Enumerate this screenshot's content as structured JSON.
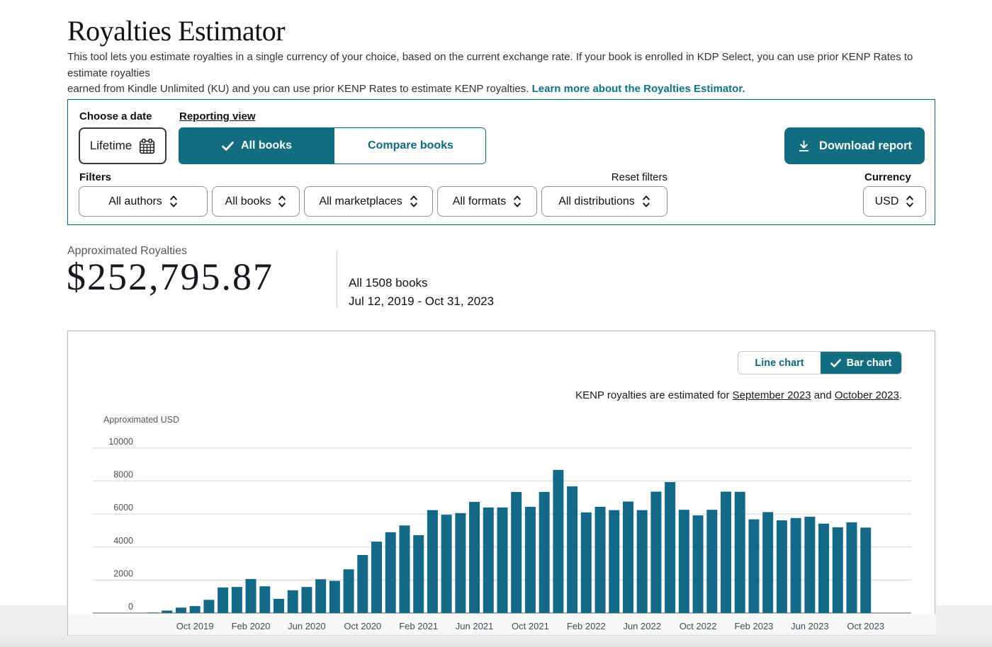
{
  "page": {
    "title": "Royalties Estimator",
    "description_line1": "This tool lets you estimate royalties in a single currency of your choice, based on the current exchange rate. If your book is enrolled in KDP Select, you can use prior KENP Rates to estimate royalties",
    "description_line2": "earned from Kindle Unlimited (KU) and you can use prior KENP Rates to estimate KENP royalties.",
    "learn_more_link": "Learn more about the Royalties Estimator."
  },
  "controls": {
    "choose_date_label": "Choose a date",
    "date_value": "Lifetime",
    "reporting_view_label": "Reporting view",
    "tabs": [
      {
        "label": "All books",
        "selected": true
      },
      {
        "label": "Compare books",
        "selected": false
      }
    ],
    "download_button": "Download report",
    "filters_label": "Filters",
    "reset_filters_label": "Reset filters",
    "filters": [
      {
        "label": "All authors"
      },
      {
        "label": "All books"
      },
      {
        "label": "All marketplaces"
      },
      {
        "label": "All formats"
      },
      {
        "label": "All distributions"
      }
    ],
    "currency_label": "Currency",
    "currency_value": "USD"
  },
  "summary": {
    "label": "Approximated Royalties",
    "amount": "$252,795.87",
    "books": "All 1508 books",
    "date_range": "Jul 12, 2019 - Oct 31, 2023"
  },
  "chart": {
    "toggle": [
      {
        "label": "Line chart",
        "selected": false
      },
      {
        "label": "Bar chart",
        "selected": true
      }
    ],
    "note_prefix": "KENP royalties are estimated for ",
    "note_link1": "September 2023",
    "note_and": " and ",
    "note_link2": "October 2023",
    "note_suffix": "."
  },
  "chart_data": {
    "type": "bar",
    "title": "",
    "xlabel": "",
    "ylabel": "Approximated USD",
    "ylim": [
      0,
      10000
    ],
    "y_ticks": [
      0,
      2000,
      4000,
      6000,
      8000,
      10000
    ],
    "grid": true,
    "legend": "none",
    "bar_color": "#156988",
    "grid_color": "#d2d6d6",
    "axis_color": "#8f9494",
    "tick_text_color": "#4c5257",
    "x": [
      "Jul 2019",
      "Aug 2019",
      "Sep 2019",
      "Oct 2019",
      "Nov 2019",
      "Dec 2019",
      "Jan 2020",
      "Feb 2020",
      "Mar 2020",
      "Apr 2020",
      "May 2020",
      "Jun 2020",
      "Jul 2020",
      "Aug 2020",
      "Sep 2020",
      "Oct 2020",
      "Nov 2020",
      "Dec 2020",
      "Jan 2021",
      "Feb 2021",
      "Mar 2021",
      "Apr 2021",
      "May 2021",
      "Jun 2021",
      "Jul 2021",
      "Aug 2021",
      "Sep 2021",
      "Oct 2021",
      "Nov 2021",
      "Dec 2021",
      "Jan 2022",
      "Feb 2022",
      "Mar 2022",
      "Apr 2022",
      "May 2022",
      "Jun 2022",
      "Jul 2022",
      "Aug 2022",
      "Sep 2022",
      "Oct 2022",
      "Nov 2022",
      "Dec 2022",
      "Jan 2023",
      "Feb 2023",
      "Mar 2023",
      "Apr 2023",
      "May 2023",
      "Jun 2023",
      "Jul 2023",
      "Aug 2023",
      "Sep 2023",
      "Oct 2023"
    ],
    "values": [
      30,
      150,
      330,
      420,
      800,
      1550,
      1580,
      2060,
      1620,
      860,
      1380,
      1580,
      2050,
      1950,
      2650,
      3520,
      4330,
      4900,
      5310,
      4720,
      6240,
      5960,
      6060,
      6740,
      6400,
      6400,
      7340,
      6440,
      7340,
      8680,
      7680,
      6100,
      6440,
      6240,
      6760,
      6240,
      7360,
      7940,
      6260,
      5920,
      6260,
      7360,
      7350,
      5680,
      6120,
      5620,
      5760,
      5840,
      5420,
      5200,
      5500,
      5180
    ],
    "x_tick_labels": [
      "Oct 2019",
      "Feb 2020",
      "Jun 2020",
      "Oct 2020",
      "Feb 2021",
      "Jun 2021",
      "Oct 2021",
      "Feb 2022",
      "Jun 2022",
      "Oct 2022",
      "Feb 2023",
      "Jun 2023",
      "Oct 2023"
    ],
    "x_tick_start_index": 3,
    "x_tick_step": 4
  },
  "icons": {
    "calendar-icon": "outline grid calendar",
    "check-icon": "checkmark",
    "download-icon": "down arrow over baseline",
    "chevron-updown-icon": "stacked up/down chevrons"
  },
  "colors": {
    "accent_teal": "#136d80",
    "panel_border_teal": "#0c6a7d",
    "link_teal": "#0e7386",
    "text_dark": "#0f1111",
    "muted_gray": "#565959"
  }
}
